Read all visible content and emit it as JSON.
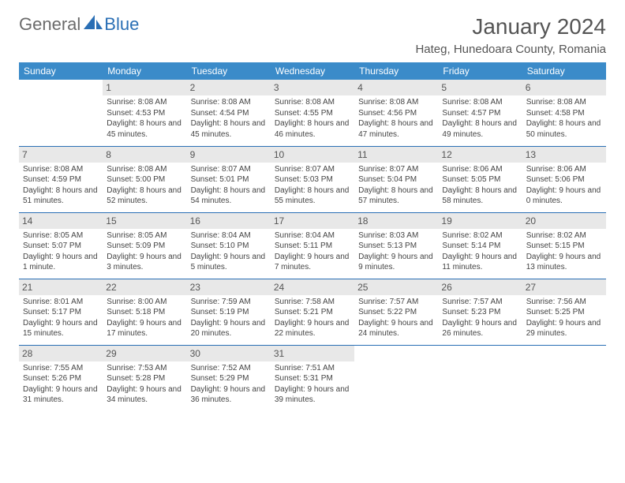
{
  "logo": {
    "part1": "General",
    "part2": "Blue"
  },
  "title": "January 2024",
  "location": "Hateg, Hunedoara County, Romania",
  "colors": {
    "header_bg": "#3b8bc9",
    "header_text": "#ffffff",
    "accent": "#2a6fb5",
    "daynum_bg": "#e8e8e8",
    "text": "#444444"
  },
  "weekdays": [
    "Sunday",
    "Monday",
    "Tuesday",
    "Wednesday",
    "Thursday",
    "Friday",
    "Saturday"
  ],
  "weeks": [
    [
      null,
      {
        "n": "1",
        "sr": "Sunrise: 8:08 AM",
        "ss": "Sunset: 4:53 PM",
        "dl": "Daylight: 8 hours and 45 minutes."
      },
      {
        "n": "2",
        "sr": "Sunrise: 8:08 AM",
        "ss": "Sunset: 4:54 PM",
        "dl": "Daylight: 8 hours and 45 minutes."
      },
      {
        "n": "3",
        "sr": "Sunrise: 8:08 AM",
        "ss": "Sunset: 4:55 PM",
        "dl": "Daylight: 8 hours and 46 minutes."
      },
      {
        "n": "4",
        "sr": "Sunrise: 8:08 AM",
        "ss": "Sunset: 4:56 PM",
        "dl": "Daylight: 8 hours and 47 minutes."
      },
      {
        "n": "5",
        "sr": "Sunrise: 8:08 AM",
        "ss": "Sunset: 4:57 PM",
        "dl": "Daylight: 8 hours and 49 minutes."
      },
      {
        "n": "6",
        "sr": "Sunrise: 8:08 AM",
        "ss": "Sunset: 4:58 PM",
        "dl": "Daylight: 8 hours and 50 minutes."
      }
    ],
    [
      {
        "n": "7",
        "sr": "Sunrise: 8:08 AM",
        "ss": "Sunset: 4:59 PM",
        "dl": "Daylight: 8 hours and 51 minutes."
      },
      {
        "n": "8",
        "sr": "Sunrise: 8:08 AM",
        "ss": "Sunset: 5:00 PM",
        "dl": "Daylight: 8 hours and 52 minutes."
      },
      {
        "n": "9",
        "sr": "Sunrise: 8:07 AM",
        "ss": "Sunset: 5:01 PM",
        "dl": "Daylight: 8 hours and 54 minutes."
      },
      {
        "n": "10",
        "sr": "Sunrise: 8:07 AM",
        "ss": "Sunset: 5:03 PM",
        "dl": "Daylight: 8 hours and 55 minutes."
      },
      {
        "n": "11",
        "sr": "Sunrise: 8:07 AM",
        "ss": "Sunset: 5:04 PM",
        "dl": "Daylight: 8 hours and 57 minutes."
      },
      {
        "n": "12",
        "sr": "Sunrise: 8:06 AM",
        "ss": "Sunset: 5:05 PM",
        "dl": "Daylight: 8 hours and 58 minutes."
      },
      {
        "n": "13",
        "sr": "Sunrise: 8:06 AM",
        "ss": "Sunset: 5:06 PM",
        "dl": "Daylight: 9 hours and 0 minutes."
      }
    ],
    [
      {
        "n": "14",
        "sr": "Sunrise: 8:05 AM",
        "ss": "Sunset: 5:07 PM",
        "dl": "Daylight: 9 hours and 1 minute."
      },
      {
        "n": "15",
        "sr": "Sunrise: 8:05 AM",
        "ss": "Sunset: 5:09 PM",
        "dl": "Daylight: 9 hours and 3 minutes."
      },
      {
        "n": "16",
        "sr": "Sunrise: 8:04 AM",
        "ss": "Sunset: 5:10 PM",
        "dl": "Daylight: 9 hours and 5 minutes."
      },
      {
        "n": "17",
        "sr": "Sunrise: 8:04 AM",
        "ss": "Sunset: 5:11 PM",
        "dl": "Daylight: 9 hours and 7 minutes."
      },
      {
        "n": "18",
        "sr": "Sunrise: 8:03 AM",
        "ss": "Sunset: 5:13 PM",
        "dl": "Daylight: 9 hours and 9 minutes."
      },
      {
        "n": "19",
        "sr": "Sunrise: 8:02 AM",
        "ss": "Sunset: 5:14 PM",
        "dl": "Daylight: 9 hours and 11 minutes."
      },
      {
        "n": "20",
        "sr": "Sunrise: 8:02 AM",
        "ss": "Sunset: 5:15 PM",
        "dl": "Daylight: 9 hours and 13 minutes."
      }
    ],
    [
      {
        "n": "21",
        "sr": "Sunrise: 8:01 AM",
        "ss": "Sunset: 5:17 PM",
        "dl": "Daylight: 9 hours and 15 minutes."
      },
      {
        "n": "22",
        "sr": "Sunrise: 8:00 AM",
        "ss": "Sunset: 5:18 PM",
        "dl": "Daylight: 9 hours and 17 minutes."
      },
      {
        "n": "23",
        "sr": "Sunrise: 7:59 AM",
        "ss": "Sunset: 5:19 PM",
        "dl": "Daylight: 9 hours and 20 minutes."
      },
      {
        "n": "24",
        "sr": "Sunrise: 7:58 AM",
        "ss": "Sunset: 5:21 PM",
        "dl": "Daylight: 9 hours and 22 minutes."
      },
      {
        "n": "25",
        "sr": "Sunrise: 7:57 AM",
        "ss": "Sunset: 5:22 PM",
        "dl": "Daylight: 9 hours and 24 minutes."
      },
      {
        "n": "26",
        "sr": "Sunrise: 7:57 AM",
        "ss": "Sunset: 5:23 PM",
        "dl": "Daylight: 9 hours and 26 minutes."
      },
      {
        "n": "27",
        "sr": "Sunrise: 7:56 AM",
        "ss": "Sunset: 5:25 PM",
        "dl": "Daylight: 9 hours and 29 minutes."
      }
    ],
    [
      {
        "n": "28",
        "sr": "Sunrise: 7:55 AM",
        "ss": "Sunset: 5:26 PM",
        "dl": "Daylight: 9 hours and 31 minutes."
      },
      {
        "n": "29",
        "sr": "Sunrise: 7:53 AM",
        "ss": "Sunset: 5:28 PM",
        "dl": "Daylight: 9 hours and 34 minutes."
      },
      {
        "n": "30",
        "sr": "Sunrise: 7:52 AM",
        "ss": "Sunset: 5:29 PM",
        "dl": "Daylight: 9 hours and 36 minutes."
      },
      {
        "n": "31",
        "sr": "Sunrise: 7:51 AM",
        "ss": "Sunset: 5:31 PM",
        "dl": "Daylight: 9 hours and 39 minutes."
      },
      null,
      null,
      null
    ]
  ]
}
